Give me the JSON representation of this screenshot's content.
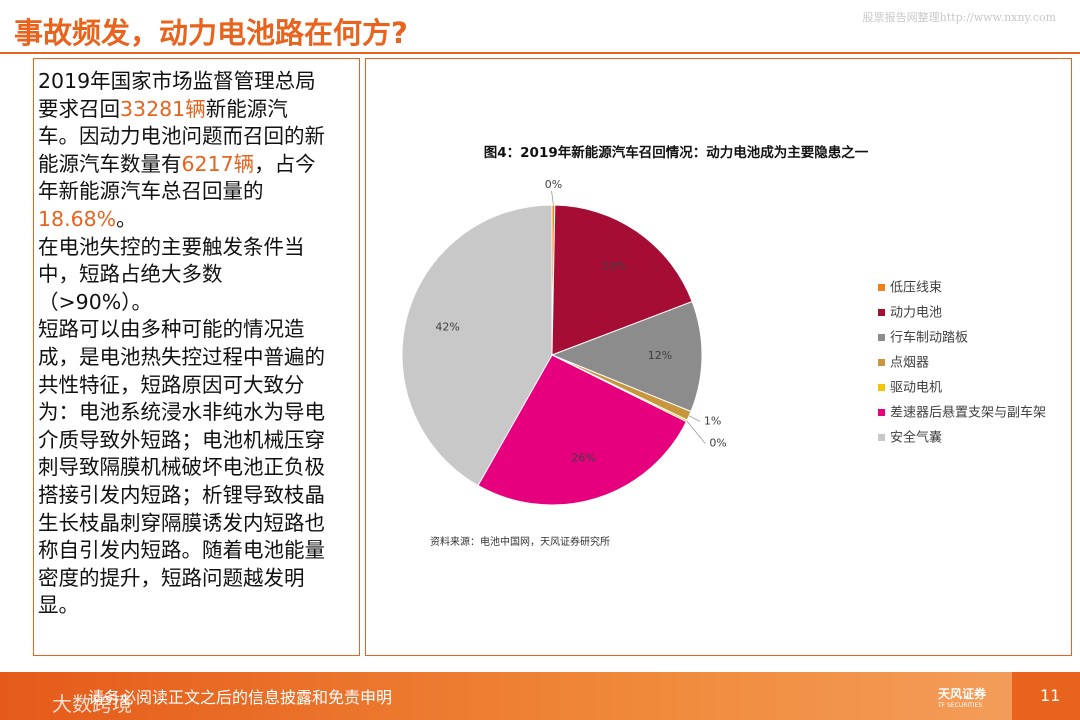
{
  "header": {
    "title": "事故频发，动力电池路在何方?",
    "watermark": "股票报告网整理http://www.nxny.com"
  },
  "body": {
    "paragraphs": [
      [
        {
          "text": "2019年国家市场监督管理总局要求召回",
          "highlight": false
        },
        {
          "text": "33281辆",
          "highlight": true
        },
        {
          "text": "新能源汽车。因动力电池问题而召回的新能源汽车数量有",
          "highlight": false
        },
        {
          "text": "6217辆",
          "highlight": true
        },
        {
          "text": "，占今年新能源汽车总召回量的",
          "highlight": false
        },
        {
          "text": "18.68%",
          "highlight": true
        },
        {
          "text": "。",
          "highlight": false
        }
      ],
      [
        {
          "text": "在电池失控的主要触发条件当中，短路占绝大多数（>90%）。",
          "highlight": false
        }
      ],
      [
        {
          "text": "短路可以由多种可能的情况造成，是电池热失控过程中普遍的共性特征，短路原因可大致分为：电池系统浸水非纯水为导电介质导致外短路；电池机械压穿刺导致隔膜机械破坏电池正负极搭接引发内短路；析锂导致枝晶生长枝晶刺穿隔膜诱发内短路也称自引发内短路。随着电池能量密度的提升，短路问题越发明显。",
          "highlight": false
        }
      ]
    ]
  },
  "chart_data": {
    "type": "pie",
    "title": "图4：2019年新能源汽车召回情况：动力电池成为主要隐患之一",
    "categories": [
      "低压线束",
      "动力电池",
      "行车制动踏板",
      "点烟器",
      "驱动电机",
      "差速器后悬置支架与副车架",
      "安全气囊"
    ],
    "values": [
      0.3,
      19,
      12,
      1,
      0.2,
      26,
      42
    ],
    "value_labels": [
      "0%",
      "19%",
      "12%",
      "1%",
      "0%",
      "26%",
      "42%"
    ],
    "colors": [
      "#f07f1e",
      "#a50d34",
      "#8c8c8c",
      "#c8963c",
      "#f5c400",
      "#e6007e",
      "#c8c8c8"
    ],
    "legend": "right",
    "source": "资料来源：电池中国网，天风证券研究所"
  },
  "footer": {
    "disclaimer": "请务必阅读正文之后的信息披露和免责申明",
    "brand": "天风证券",
    "brand_sub": "TF SECURITIES",
    "page": "11",
    "watermark": "大数跨境"
  }
}
